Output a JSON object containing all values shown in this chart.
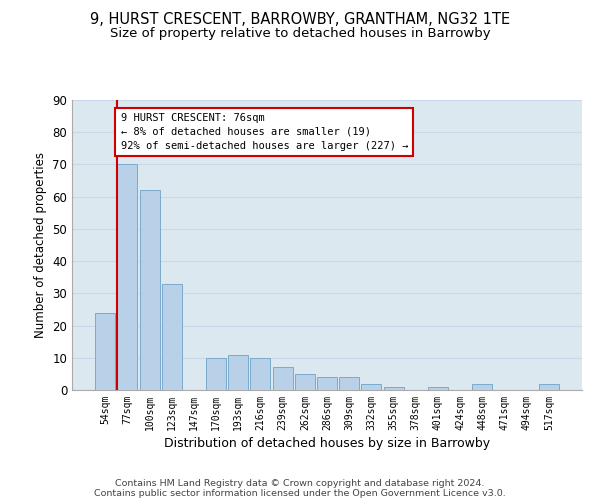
{
  "title": "9, HURST CRESCENT, BARROWBY, GRANTHAM, NG32 1TE",
  "subtitle": "Size of property relative to detached houses in Barrowby",
  "xlabel": "Distribution of detached houses by size in Barrowby",
  "ylabel": "Number of detached properties",
  "categories": [
    "54sqm",
    "77sqm",
    "100sqm",
    "123sqm",
    "147sqm",
    "170sqm",
    "193sqm",
    "216sqm",
    "239sqm",
    "262sqm",
    "286sqm",
    "309sqm",
    "332sqm",
    "355sqm",
    "378sqm",
    "401sqm",
    "424sqm",
    "448sqm",
    "471sqm",
    "494sqm",
    "517sqm"
  ],
  "values": [
    24,
    70,
    62,
    33,
    0,
    10,
    11,
    10,
    7,
    5,
    4,
    4,
    2,
    1,
    0,
    1,
    0,
    2,
    0,
    0,
    2
  ],
  "bar_color": "#b8d0e8",
  "bar_edge_color": "#7aaace",
  "annotation_line_color": "#cc0000",
  "annotation_box_text": "9 HURST CRESCENT: 76sqm\n← 8% of detached houses are smaller (19)\n92% of semi-detached houses are larger (227) →",
  "annotation_box_edge_color": "#cc0000",
  "ylim": [
    0,
    90
  ],
  "yticks": [
    0,
    10,
    20,
    30,
    40,
    50,
    60,
    70,
    80,
    90
  ],
  "grid_color": "#c8d8e8",
  "background_color": "#dce8f0",
  "footer1": "Contains HM Land Registry data © Crown copyright and database right 2024.",
  "footer2": "Contains public sector information licensed under the Open Government Licence v3.0.",
  "title_fontsize": 10.5,
  "subtitle_fontsize": 9.5
}
